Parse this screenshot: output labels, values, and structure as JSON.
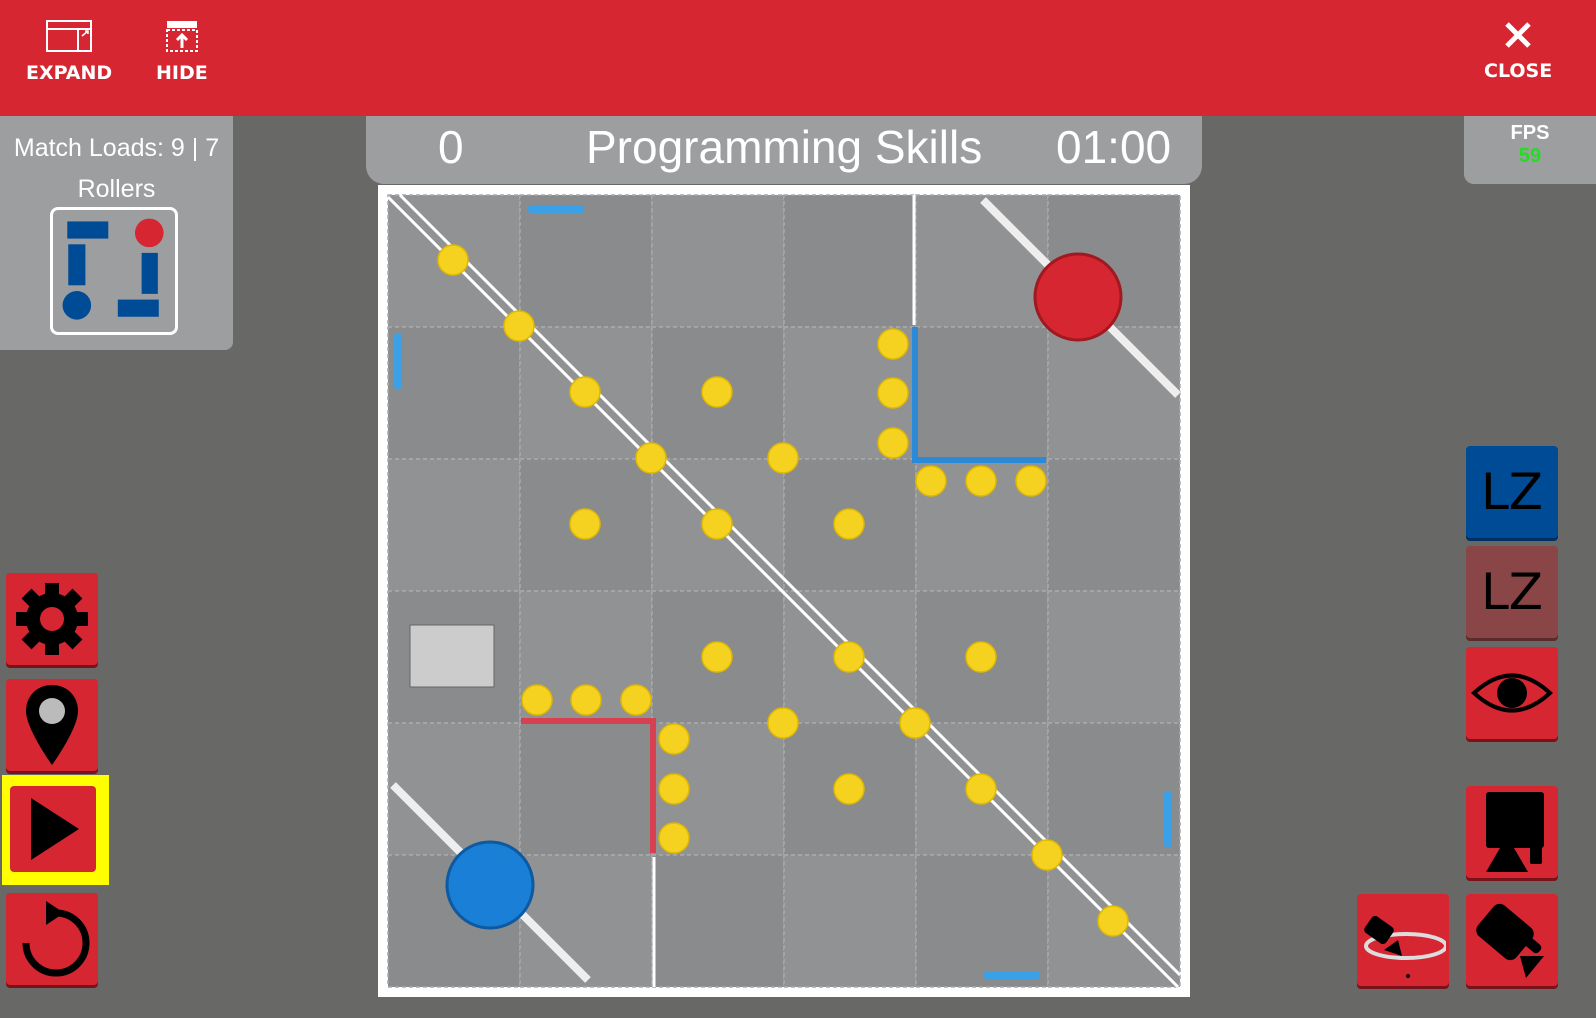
{
  "topbar": {
    "expand_label": "EXPAND",
    "hide_label": "HIDE",
    "close_label": "CLOSE",
    "color": "#d62631"
  },
  "info": {
    "match_loads": "Match Loads: 9 | 7",
    "rollers_label": "Rollers"
  },
  "scoreboard": {
    "score": "0",
    "title": "Programming Skills",
    "timer": "01:00"
  },
  "fps": {
    "label": "FPS",
    "value": "59"
  },
  "left_buttons": [
    {
      "icon": "gear-icon"
    },
    {
      "icon": "map-pin-icon"
    },
    {
      "icon": "play-icon",
      "highlighted": true
    },
    {
      "icon": "reset-icon"
    }
  ],
  "right_buttons": {
    "lz_blue": "LZ",
    "lz_red": "LZ",
    "eye": "eye-icon",
    "camera_robot": "robot-camera-icon",
    "camera_orbit": "orbit-camera-icon",
    "camera_follow": "follow-camera-icon"
  },
  "colors": {
    "blue": "#004b96",
    "red": "#d62631",
    "disc": "#f5d21f",
    "field": "#8c8d8f"
  }
}
